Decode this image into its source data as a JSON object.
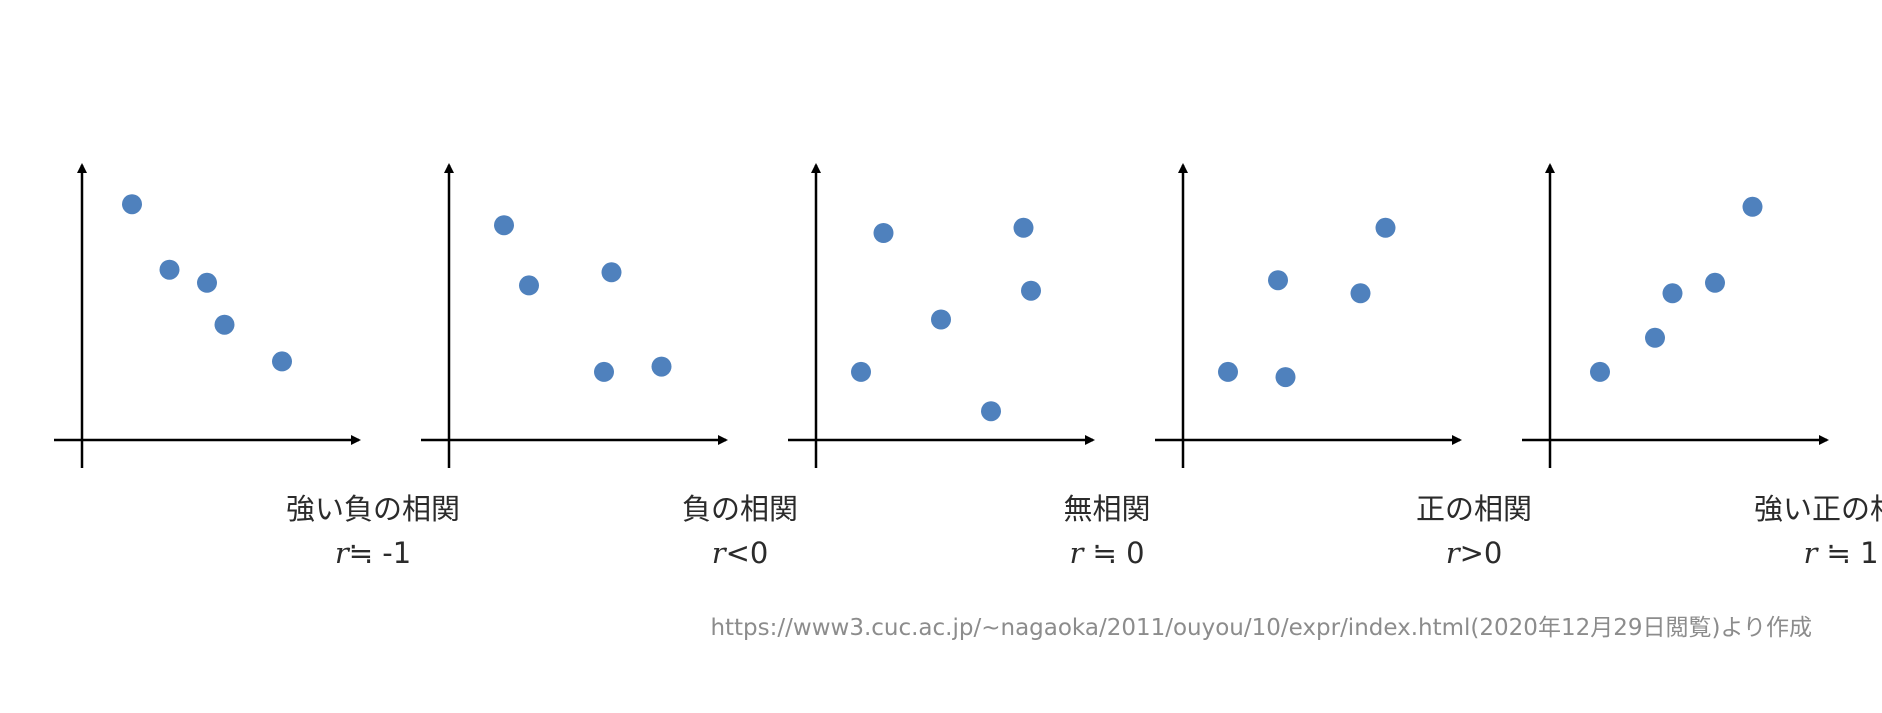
{
  "colors": {
    "point": "#4f81bd",
    "axis": "#000000",
    "text": "#2b2b2b",
    "source": "#8c8c8c"
  },
  "panels": [
    {
      "title": "強い負の相関",
      "r_var": "r",
      "r_rel": "≒ -1",
      "points": [
        [
          2,
          9
        ],
        [
          3.5,
          6.5
        ],
        [
          5,
          6
        ],
        [
          5.7,
          4.4
        ],
        [
          8,
          3
        ]
      ]
    },
    {
      "title": "負の相関",
      "r_var": "r",
      "r_rel": "<0",
      "points": [
        [
          2.2,
          8.2
        ],
        [
          3.2,
          5.9
        ],
        [
          6.5,
          6.4
        ],
        [
          6.2,
          2.6
        ],
        [
          8.5,
          2.8
        ]
      ]
    },
    {
      "title": "無相関",
      "r_var": "r",
      "r_rel": " ≒ 0",
      "points": [
        [
          1.8,
          2.6
        ],
        [
          2.7,
          7.9
        ],
        [
          5,
          4.6
        ],
        [
          7,
          1.1
        ],
        [
          8.3,
          8.1
        ],
        [
          8.6,
          5.7
        ]
      ]
    },
    {
      "title": "正の相関",
      "r_var": "r",
      "r_rel": ">0",
      "points": [
        [
          1.8,
          2.6
        ],
        [
          3.8,
          6.1
        ],
        [
          4.1,
          2.4
        ],
        [
          7.1,
          5.6
        ],
        [
          8.1,
          8.1
        ]
      ]
    },
    {
      "title": "強い正の相関",
      "r_var": "r",
      "r_rel": " ≒ 1",
      "points": [
        [
          2,
          2.6
        ],
        [
          4.2,
          3.9
        ],
        [
          4.9,
          5.6
        ],
        [
          6.6,
          6
        ],
        [
          8.1,
          8.9
        ]
      ]
    }
  ],
  "source_note": "https://www3.cuc.ac.jp/~nagaoka/2011/ouyou/10/expr/index.html(2020年12月29日閲覧)より作成"
}
